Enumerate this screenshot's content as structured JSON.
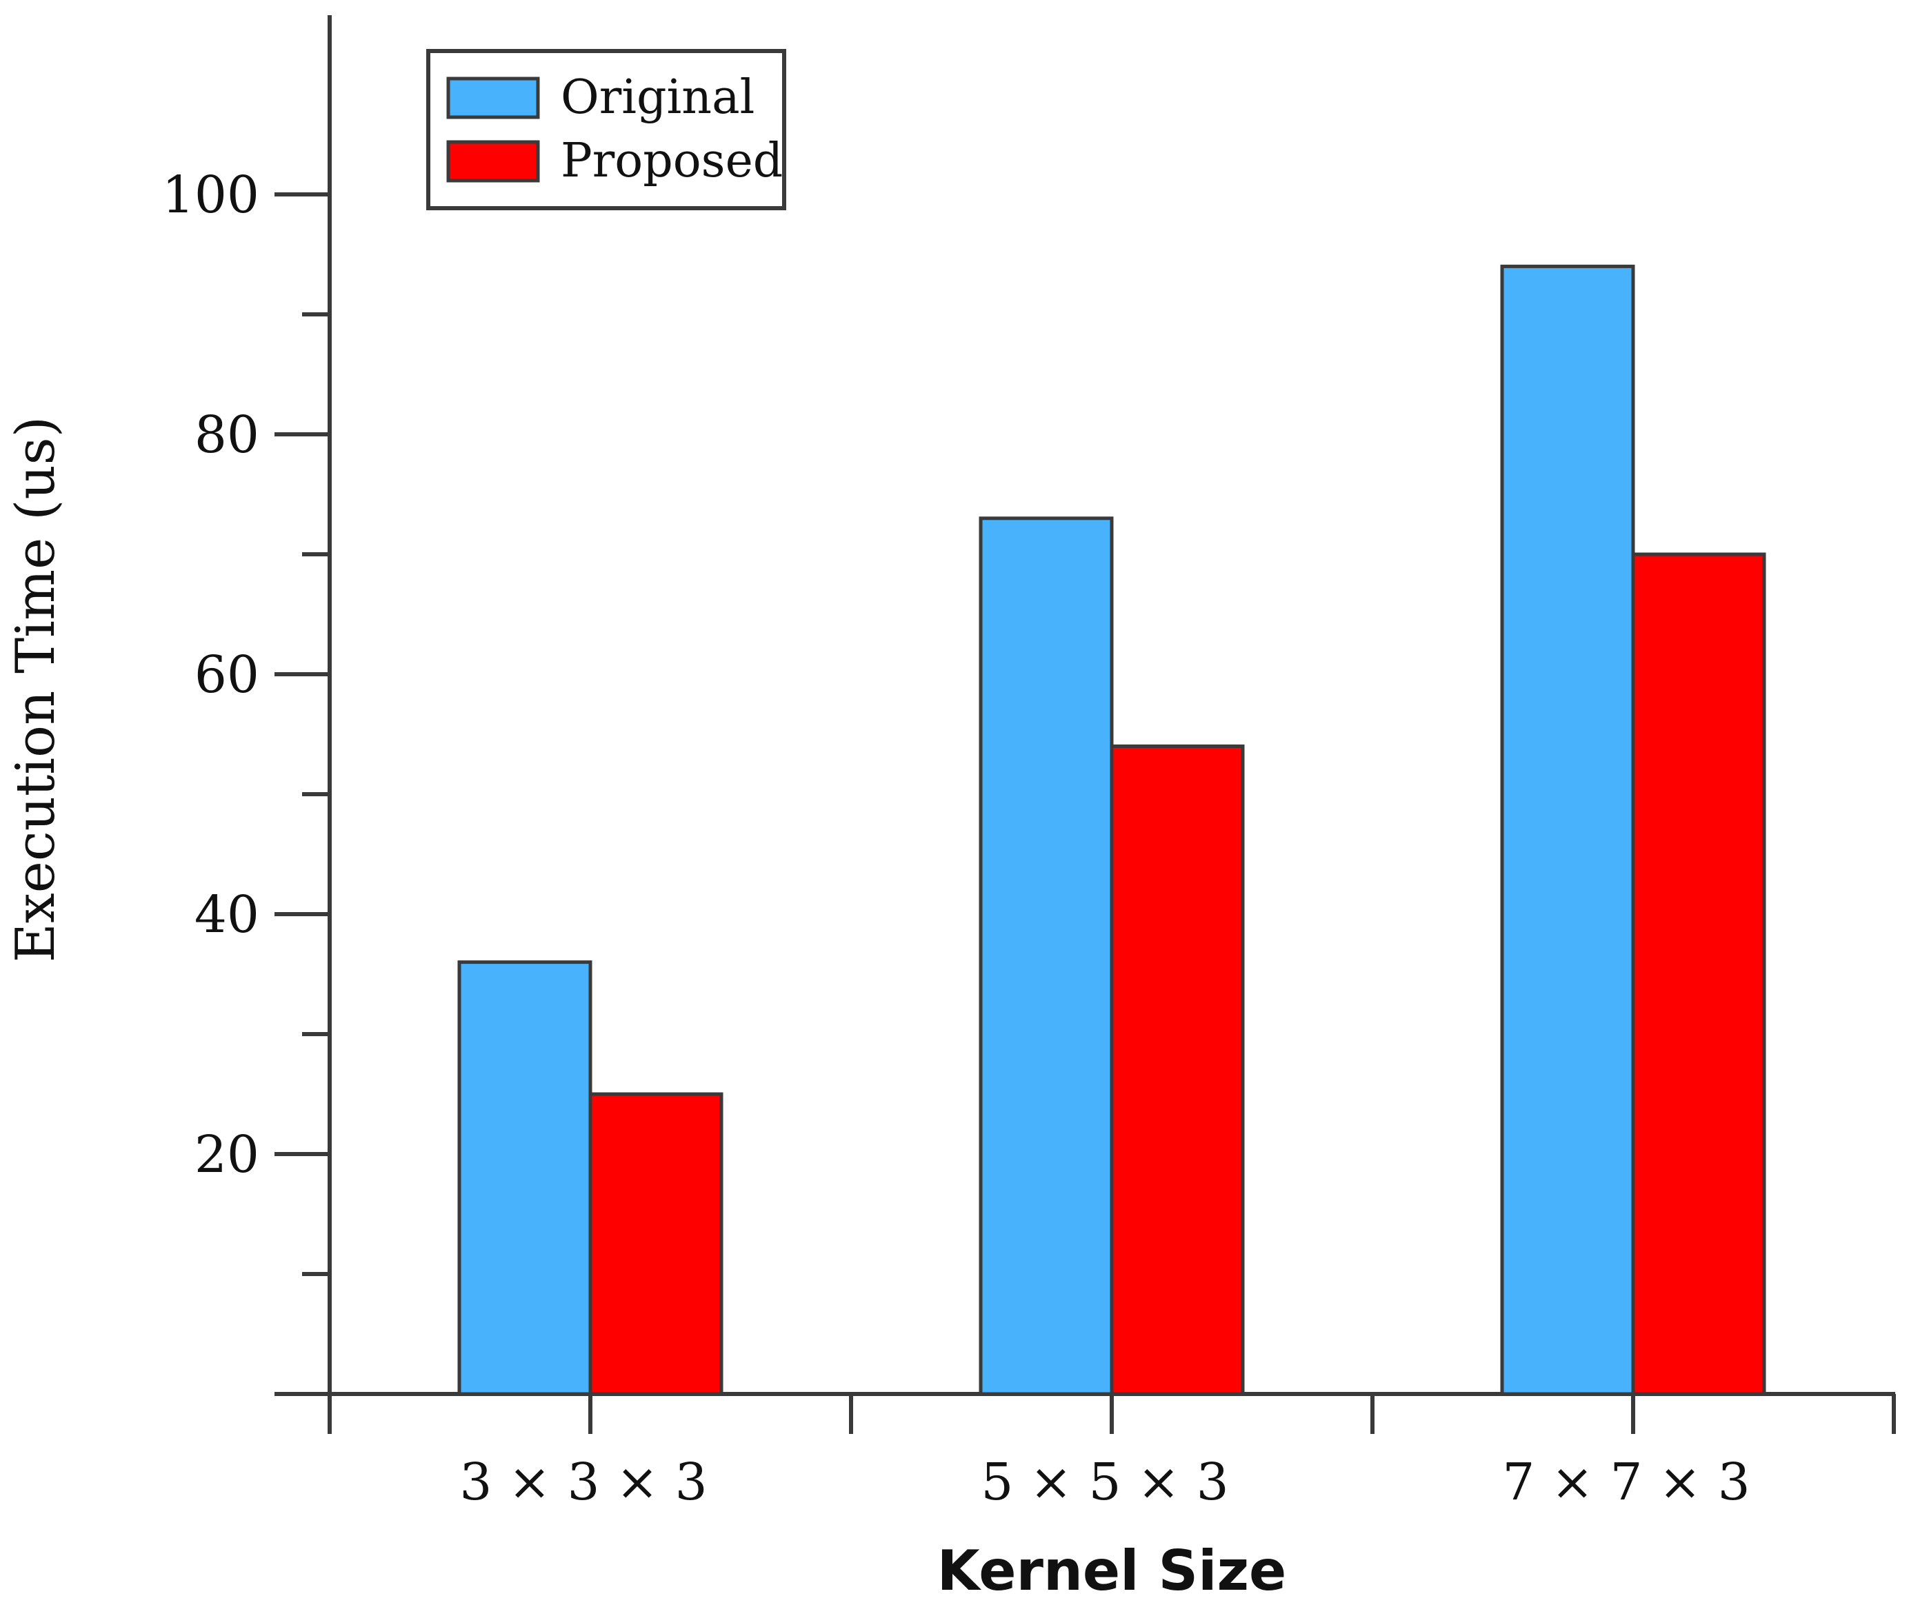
{
  "chart_data": {
    "type": "bar",
    "title": "",
    "xlabel": "Kernel Size",
    "ylabel": "Execution Time (us)",
    "categories": [
      "3 × 3 × 3",
      "5 × 5 × 3",
      "7 × 7 × 3"
    ],
    "series": [
      {
        "name": "Original",
        "color": "#48b2fc",
        "values": [
          36,
          73,
          94
        ]
      },
      {
        "name": "Proposed",
        "color": "#ff0000",
        "values": [
          25,
          54,
          70
        ]
      }
    ],
    "ylim": [
      0,
      115
    ],
    "yticks_major": [
      20,
      40,
      60,
      80,
      100
    ],
    "yticks_minor": [
      10,
      30,
      50,
      70,
      90
    ],
    "grid": false,
    "legend_position": "top-left"
  }
}
